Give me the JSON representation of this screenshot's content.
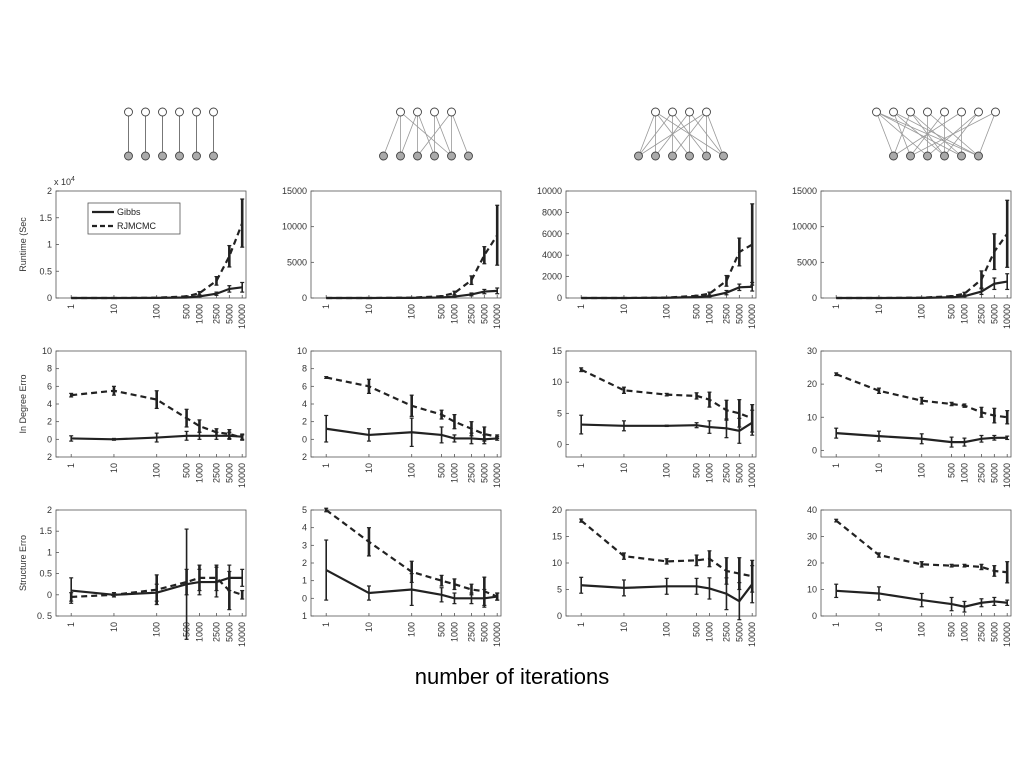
{
  "caption": "number of iterations",
  "colors": {
    "line": "#222222",
    "axis": "#555555",
    "node_fill": "#aaaaaa",
    "edge": "#999999"
  },
  "legend": {
    "gibbs": "Gibbs",
    "rjmcmc": "RJMCMC"
  },
  "row_labels": [
    "Runtime (Sec",
    "In Degree Erro",
    "Structure Erro"
  ],
  "exponent_label": "x 10",
  "exponent_power": "4",
  "x_tick_labels": [
    "1",
    "10",
    "100",
    "500",
    "1000",
    "2500",
    "5000",
    "10000"
  ],
  "graphs": [
    {
      "top_nodes": 6,
      "bottom_nodes": 6,
      "edges": [
        [
          0,
          0
        ],
        [
          1,
          1
        ],
        [
          2,
          2
        ],
        [
          3,
          3
        ],
        [
          4,
          4
        ],
        [
          5,
          5
        ]
      ]
    },
    {
      "top_nodes": 4,
      "bottom_nodes": 6,
      "edges": [
        [
          0,
          0
        ],
        [
          0,
          1
        ],
        [
          1,
          1
        ],
        [
          1,
          2
        ],
        [
          1,
          3
        ],
        [
          2,
          3
        ],
        [
          2,
          4
        ],
        [
          3,
          2
        ],
        [
          3,
          4
        ],
        [
          3,
          5
        ],
        [
          0,
          4
        ]
      ]
    },
    {
      "top_nodes": 4,
      "bottom_nodes": 6,
      "edges": [
        [
          0,
          0
        ],
        [
          0,
          1
        ],
        [
          0,
          3
        ],
        [
          0,
          5
        ],
        [
          1,
          0
        ],
        [
          1,
          2
        ],
        [
          1,
          4
        ],
        [
          2,
          1
        ],
        [
          2,
          3
        ],
        [
          2,
          5
        ],
        [
          3,
          0
        ],
        [
          3,
          2
        ],
        [
          3,
          4
        ],
        [
          3,
          5
        ]
      ]
    },
    {
      "top_nodes": 8,
      "bottom_nodes": 6,
      "edges": [
        [
          0,
          0
        ],
        [
          0,
          2
        ],
        [
          0,
          5
        ],
        [
          1,
          1
        ],
        [
          1,
          3
        ],
        [
          1,
          5
        ],
        [
          2,
          0
        ],
        [
          2,
          4
        ],
        [
          3,
          2
        ],
        [
          3,
          5
        ],
        [
          4,
          1
        ],
        [
          4,
          3
        ],
        [
          5,
          0
        ],
        [
          5,
          4
        ],
        [
          6,
          2
        ],
        [
          6,
          3
        ],
        [
          7,
          1
        ],
        [
          7,
          5
        ],
        [
          0,
          4
        ],
        [
          2,
          3
        ]
      ]
    }
  ],
  "chart_data": [
    {
      "type": "line",
      "row": 0,
      "col": 0,
      "ylabel": "Runtime (Sec",
      "ylim": [
        0,
        20000
      ],
      "ytick_labels": [
        "0",
        "0.5",
        "1",
        "1.5",
        "2"
      ],
      "ytick_values": [
        0,
        5000,
        10000,
        15000,
        20000
      ],
      "exponent": "x 10^4",
      "x": [
        1,
        10,
        100,
        500,
        1000,
        2500,
        5000,
        10000
      ],
      "series": [
        {
          "name": "Gibbs",
          "style": "solid",
          "values": [
            0,
            0,
            20,
            100,
            300,
            800,
            1700,
            2000
          ],
          "err": [
            0,
            0,
            10,
            30,
            100,
            300,
            600,
            900
          ]
        },
        {
          "name": "RJMCMC",
          "style": "dashed",
          "values": [
            0,
            0,
            50,
            300,
            900,
            3200,
            7800,
            14000
          ],
          "err": [
            0,
            0,
            20,
            100,
            300,
            800,
            2000,
            4500
          ]
        }
      ]
    },
    {
      "type": "line",
      "row": 0,
      "col": 1,
      "ylabel": "",
      "ylim": [
        0,
        15000
      ],
      "ytick_labels": [
        "0",
        "5000",
        "10000",
        "15000"
      ],
      "ytick_values": [
        0,
        5000,
        10000,
        15000
      ],
      "x": [
        1,
        10,
        100,
        500,
        1000,
        2500,
        5000,
        10000
      ],
      "series": [
        {
          "name": "Gibbs",
          "style": "solid",
          "values": [
            0,
            0,
            20,
            80,
            200,
            500,
            900,
            1000
          ],
          "err": [
            0,
            0,
            10,
            30,
            80,
            200,
            300,
            400
          ]
        },
        {
          "name": "RJMCMC",
          "style": "dashed",
          "values": [
            0,
            0,
            50,
            250,
            700,
            2500,
            6000,
            8800
          ],
          "err": [
            0,
            0,
            20,
            80,
            250,
            600,
            1200,
            4200
          ]
        }
      ]
    },
    {
      "type": "line",
      "row": 0,
      "col": 2,
      "ylabel": "",
      "ylim": [
        0,
        10000
      ],
      "ytick_labels": [
        "0",
        "2000",
        "4000",
        "6000",
        "8000",
        "10000"
      ],
      "ytick_values": [
        0,
        2000,
        4000,
        6000,
        8000,
        10000
      ],
      "x": [
        1,
        10,
        100,
        500,
        1000,
        2500,
        5000,
        10000
      ],
      "series": [
        {
          "name": "Gibbs",
          "style": "solid",
          "values": [
            0,
            0,
            20,
            80,
            150,
            500,
            1000,
            1050
          ],
          "err": [
            0,
            0,
            10,
            30,
            60,
            200,
            300,
            400
          ]
        },
        {
          "name": "RJMCMC",
          "style": "dashed",
          "values": [
            0,
            0,
            40,
            200,
            400,
            1600,
            4300,
            5000
          ],
          "err": [
            0,
            0,
            20,
            60,
            150,
            500,
            1300,
            3800
          ]
        }
      ]
    },
    {
      "type": "line",
      "row": 0,
      "col": 3,
      "ylabel": "",
      "ylim": [
        0,
        15000
      ],
      "ytick_labels": [
        "0",
        "5000",
        "10000",
        "15000"
      ],
      "ytick_values": [
        0,
        5000,
        10000,
        15000
      ],
      "x": [
        1,
        10,
        100,
        500,
        1000,
        2500,
        5000,
        10000
      ],
      "series": [
        {
          "name": "Gibbs",
          "style": "solid",
          "values": [
            0,
            0,
            20,
            100,
            250,
            900,
            2000,
            2300
          ],
          "err": [
            0,
            0,
            10,
            40,
            100,
            400,
            800,
            1100
          ]
        },
        {
          "name": "RJMCMC",
          "style": "dashed",
          "values": [
            0,
            0,
            50,
            250,
            600,
            2600,
            6500,
            9000
          ],
          "err": [
            0,
            0,
            20,
            80,
            200,
            1200,
            2500,
            4700
          ]
        }
      ]
    },
    {
      "type": "line",
      "row": 1,
      "col": 0,
      "ylabel": "In Degree Erro",
      "ylim": [
        -2,
        10
      ],
      "ytick_labels": [
        "2",
        "0",
        "2",
        "4",
        "6",
        "8",
        "10"
      ],
      "ytick_values": [
        -2,
        0,
        2,
        4,
        6,
        8,
        10
      ],
      "x": [
        1,
        10,
        100,
        500,
        1000,
        2500,
        5000,
        10000
      ],
      "series": [
        {
          "name": "Gibbs",
          "style": "solid",
          "values": [
            0.1,
            0.0,
            0.2,
            0.4,
            0.4,
            0.4,
            0.4,
            0.3
          ],
          "err": [
            0.3,
            0.1,
            0.5,
            0.5,
            0.4,
            0.4,
            0.4,
            0.3
          ]
        },
        {
          "name": "RJMCMC",
          "style": "dashed",
          "values": [
            5.0,
            5.5,
            4.5,
            2.4,
            1.5,
            0.8,
            0.6,
            0.2
          ],
          "err": [
            0.2,
            0.5,
            1.0,
            1.0,
            0.7,
            0.4,
            0.5,
            0.3
          ]
        }
      ]
    },
    {
      "type": "line",
      "row": 1,
      "col": 1,
      "ylabel": "",
      "ylim": [
        -2,
        10
      ],
      "ytick_labels": [
        "2",
        "0",
        "2",
        "4",
        "6",
        "8",
        "10"
      ],
      "ytick_values": [
        -2,
        0,
        2,
        4,
        6,
        8,
        10
      ],
      "x": [
        1,
        10,
        100,
        500,
        1000,
        2500,
        5000,
        10000
      ],
      "series": [
        {
          "name": "Gibbs",
          "style": "solid",
          "values": [
            1.2,
            0.5,
            0.8,
            0.5,
            0.1,
            0.1,
            0.0,
            0.1
          ],
          "err": [
            1.5,
            0.7,
            1.6,
            0.9,
            0.4,
            0.6,
            0.5,
            0.2
          ]
        },
        {
          "name": "RJMCMC",
          "style": "dashed",
          "values": [
            7.0,
            6.0,
            3.8,
            2.8,
            2.0,
            1.2,
            0.6,
            0.3
          ],
          "err": [
            0.1,
            0.8,
            1.2,
            0.5,
            0.8,
            0.8,
            0.8,
            0.2
          ]
        }
      ]
    },
    {
      "type": "line",
      "row": 1,
      "col": 2,
      "ylabel": "",
      "ylim": [
        -2,
        15
      ],
      "ytick_labels": [
        "0",
        "5",
        "10",
        "15"
      ],
      "ytick_values": [
        0,
        5,
        10,
        15
      ],
      "x": [
        1,
        10,
        100,
        500,
        1000,
        2500,
        5000,
        10000
      ],
      "series": [
        {
          "name": "Gibbs",
          "style": "solid",
          "values": [
            3.2,
            3.0,
            3.0,
            3.1,
            2.8,
            2.6,
            2.2,
            3.5
          ],
          "err": [
            1.5,
            0.8,
            0.1,
            0.4,
            1.0,
            1.5,
            2.0,
            2.0
          ]
        },
        {
          "name": "RJMCMC",
          "style": "dashed",
          "values": [
            12.0,
            8.7,
            8.0,
            7.8,
            7.2,
            5.5,
            5.0,
            4.2
          ],
          "err": [
            0.3,
            0.5,
            0.2,
            0.5,
            1.2,
            1.6,
            2.2,
            2.2
          ]
        }
      ]
    },
    {
      "type": "line",
      "row": 1,
      "col": 3,
      "ylabel": "",
      "ylim": [
        -2,
        30
      ],
      "ytick_labels": [
        "0",
        "10",
        "20",
        "30"
      ],
      "ytick_values": [
        0,
        10,
        20,
        30
      ],
      "x": [
        1,
        10,
        100,
        500,
        1000,
        2500,
        5000,
        10000
      ],
      "series": [
        {
          "name": "Gibbs",
          "style": "solid",
          "values": [
            5.2,
            4.3,
            3.5,
            2.5,
            2.5,
            3.5,
            3.8,
            3.8
          ],
          "err": [
            1.5,
            1.5,
            1.5,
            1.5,
            1.2,
            1.0,
            0.7,
            0.5
          ]
        },
        {
          "name": "RJMCMC",
          "style": "dashed",
          "values": [
            23.0,
            18.0,
            15.0,
            14.0,
            13.5,
            11.5,
            10.5,
            10.0
          ],
          "err": [
            0.4,
            0.8,
            1.0,
            0.5,
            0.5,
            1.5,
            2.2,
            2.0
          ]
        }
      ]
    },
    {
      "type": "line",
      "row": 2,
      "col": 0,
      "ylabel": "Structure Erro",
      "ylim": [
        -0.5,
        2
      ],
      "ytick_labels": [
        "0. 5",
        "0",
        "0.5",
        "1",
        "1.5",
        "2"
      ],
      "ytick_values": [
        -0.5,
        0,
        0.5,
        1,
        1.5,
        2
      ],
      "x": [
        1,
        10,
        100,
        500,
        1000,
        2500,
        5000,
        10000
      ],
      "series": [
        {
          "name": "Gibbs",
          "style": "solid",
          "values": [
            0.1,
            0.0,
            0.05,
            0.25,
            0.3,
            0.3,
            0.4,
            0.4
          ],
          "err": [
            0.3,
            0.05,
            0.2,
            1.3,
            0.3,
            0.35,
            0.3,
            0.2
          ]
        },
        {
          "name": "RJMCMC",
          "style": "dashed",
          "values": [
            -0.05,
            0.0,
            0.12,
            0.3,
            0.4,
            0.4,
            0.1,
            0.0
          ],
          "err": [
            0.1,
            0.05,
            0.35,
            0.3,
            0.3,
            0.3,
            0.45,
            0.1
          ]
        }
      ]
    },
    {
      "type": "line",
      "row": 2,
      "col": 1,
      "ylabel": "",
      "ylim": [
        -1,
        5
      ],
      "ytick_labels": [
        "1",
        "0",
        "1",
        "2",
        "3",
        "4",
        "5"
      ],
      "ytick_values": [
        -1,
        0,
        1,
        2,
        3,
        4,
        5
      ],
      "x": [
        1,
        10,
        100,
        500,
        1000,
        2500,
        5000,
        10000
      ],
      "series": [
        {
          "name": "Gibbs",
          "style": "solid",
          "values": [
            1.6,
            0.3,
            0.5,
            0.2,
            0.0,
            0.0,
            0.0,
            0.1
          ],
          "err": [
            1.7,
            0.4,
            0.9,
            0.4,
            0.3,
            0.3,
            0.5,
            0.2
          ]
        },
        {
          "name": "RJMCMC",
          "style": "dashed",
          "values": [
            5.0,
            3.2,
            1.5,
            1.0,
            0.8,
            0.5,
            0.4,
            0.1
          ],
          "err": [
            0.1,
            0.8,
            0.6,
            0.3,
            0.3,
            0.3,
            0.8,
            0.2
          ]
        }
      ]
    },
    {
      "type": "line",
      "row": 2,
      "col": 2,
      "ylabel": "",
      "ylim": [
        0,
        20
      ],
      "ytick_labels": [
        "0",
        "5",
        "10",
        "15",
        "20"
      ],
      "ytick_values": [
        0,
        5,
        10,
        15,
        20
      ],
      "x": [
        1,
        10,
        100,
        500,
        1000,
        2500,
        5000,
        10000
      ],
      "series": [
        {
          "name": "Gibbs",
          "style": "solid",
          "values": [
            5.8,
            5.3,
            5.6,
            5.6,
            5.2,
            4.2,
            2.8,
            6.0
          ],
          "err": [
            1.5,
            1.5,
            1.5,
            1.5,
            2.0,
            3.0,
            3.5,
            3.5
          ]
        },
        {
          "name": "RJMCMC",
          "style": "dashed",
          "values": [
            18.0,
            11.3,
            10.3,
            10.5,
            10.8,
            8.5,
            8.0,
            7.5
          ],
          "err": [
            0.3,
            0.6,
            0.5,
            1.0,
            1.5,
            2.5,
            3.0,
            3.0
          ]
        }
      ]
    },
    {
      "type": "line",
      "row": 2,
      "col": 3,
      "ylabel": "",
      "ylim": [
        0,
        40
      ],
      "ytick_labels": [
        "0",
        "10",
        "20",
        "30",
        "40"
      ],
      "ytick_values": [
        0,
        10,
        20,
        30,
        40
      ],
      "x": [
        1,
        10,
        100,
        500,
        1000,
        2500,
        5000,
        10000
      ],
      "series": [
        {
          "name": "Gibbs",
          "style": "solid",
          "values": [
            9.5,
            8.5,
            6.0,
            4.5,
            3.5,
            5.0,
            5.5,
            5.0
          ],
          "err": [
            2.5,
            2.5,
            2.5,
            2.5,
            2.0,
            1.5,
            1.5,
            1.0
          ]
        },
        {
          "name": "RJMCMC",
          "style": "dashed",
          "values": [
            36.0,
            23.0,
            19.5,
            19.0,
            19.0,
            18.5,
            17.0,
            16.5
          ],
          "err": [
            0.5,
            0.8,
            1.0,
            0.5,
            0.5,
            1.0,
            2.0,
            4.0
          ]
        }
      ]
    }
  ]
}
